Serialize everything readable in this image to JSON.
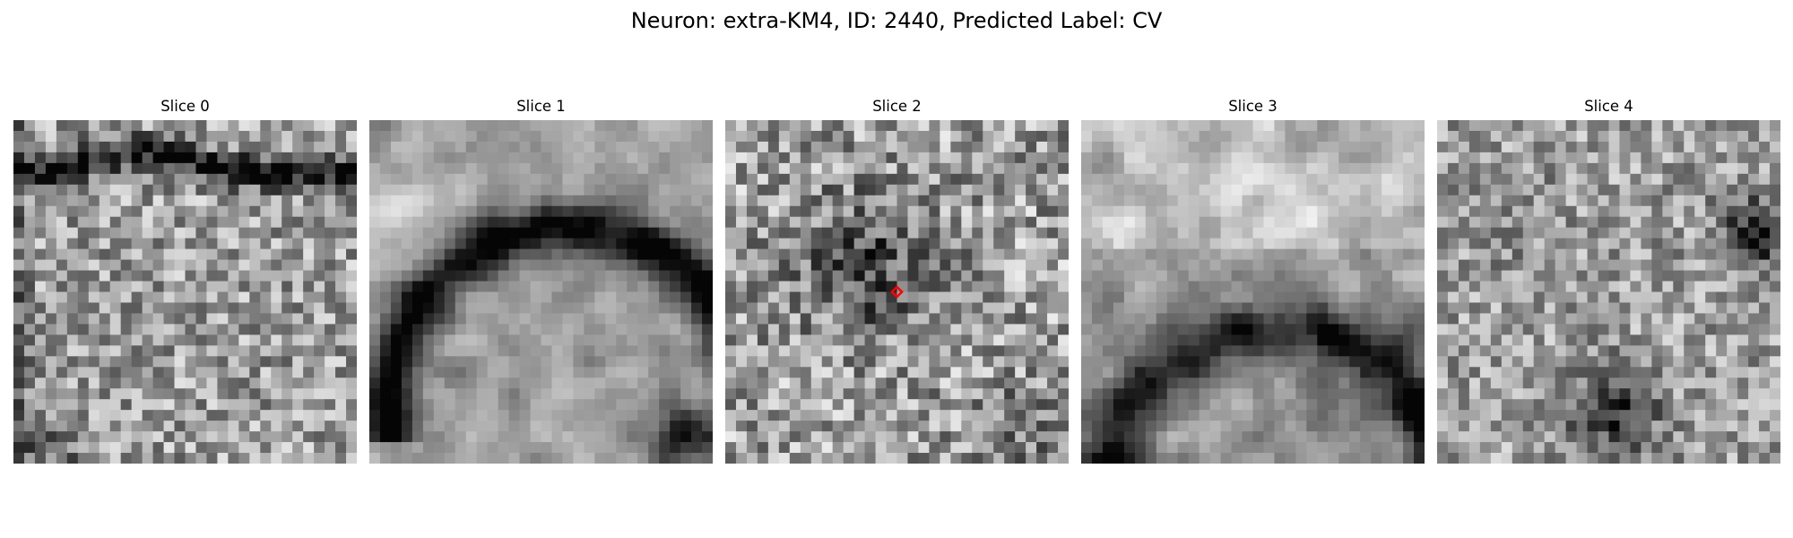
{
  "figure": {
    "title": "Neuron: extra-KM4, ID: 2440, Predicted Label: CV"
  },
  "slices": [
    {
      "title": "Slice 0"
    },
    {
      "title": "Slice 1"
    },
    {
      "title": "Slice 2"
    },
    {
      "title": "Slice 3"
    },
    {
      "title": "Slice 4"
    }
  ],
  "marker": {
    "slice_index": 2,
    "color": "#ff0000",
    "shape": "diamond"
  },
  "colors": {
    "background": "#ffffff",
    "text": "#000000"
  }
}
